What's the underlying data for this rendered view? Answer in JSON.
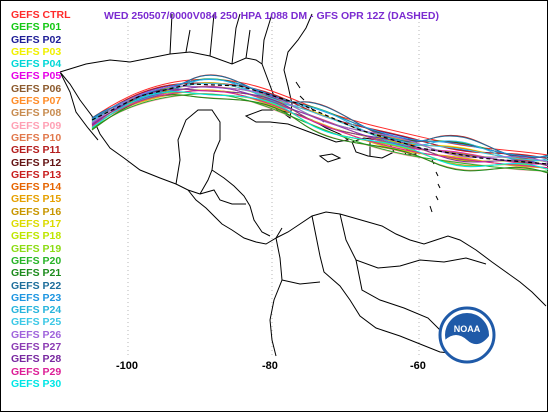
{
  "title": "WED 250507/0000V084  250 HPA 1088 DM - GFS OPR 12Z (DASHED)",
  "legend": [
    {
      "label": "GEFS CTRL",
      "color": "#ff2a2a"
    },
    {
      "label": "GEFS P01",
      "color": "#14c814"
    },
    {
      "label": "GEFS P02",
      "color": "#1e1e96"
    },
    {
      "label": "GEFS P03",
      "color": "#f0f000"
    },
    {
      "label": "GEFS P04",
      "color": "#00d7d7"
    },
    {
      "label": "GEFS P05",
      "color": "#e600e6"
    },
    {
      "label": "GEFS P06",
      "color": "#8c5a2d"
    },
    {
      "label": "GEFS P07",
      "color": "#ff8c28"
    },
    {
      "label": "GEFS P08",
      "color": "#c88c50"
    },
    {
      "label": "GEFS P09",
      "color": "#ffa0b4"
    },
    {
      "label": "GEFS P10",
      "color": "#e1784b"
    },
    {
      "label": "GEFS P11",
      "color": "#b41e1e"
    },
    {
      "label": "GEFS P12",
      "color": "#641414"
    },
    {
      "label": "GEFS P13",
      "color": "#c81e1e"
    },
    {
      "label": "GEFS P14",
      "color": "#e66400"
    },
    {
      "label": "GEFS P15",
      "color": "#e6a000"
    },
    {
      "label": "GEFS P16",
      "color": "#c89600"
    },
    {
      "label": "GEFS P17",
      "color": "#dcdc00"
    },
    {
      "label": "GEFS P18",
      "color": "#bee600"
    },
    {
      "label": "GEFS P19",
      "color": "#8cdc14"
    },
    {
      "label": "GEFS P20",
      "color": "#28b428"
    },
    {
      "label": "GEFS P21",
      "color": "#1e8c1e"
    },
    {
      "label": "GEFS P22",
      "color": "#1e6e9b"
    },
    {
      "label": "GEFS P23",
      "color": "#1e96e1"
    },
    {
      "label": "GEFS P24",
      "color": "#28b4dc"
    },
    {
      "label": "GEFS P25",
      "color": "#3cc8e6"
    },
    {
      "label": "GEFS P26",
      "color": "#a064dc"
    },
    {
      "label": "GEFS P27",
      "color": "#8c3cb4"
    },
    {
      "label": "GEFS P28",
      "color": "#7828a0"
    },
    {
      "label": "GEFS P29",
      "color": "#dc1e96"
    },
    {
      "label": "GEFS P30",
      "color": "#00e6e6"
    }
  ],
  "lon_labels": [
    {
      "text": "-100",
      "lon": -100
    },
    {
      "text": "-80",
      "lon": -80
    },
    {
      "text": "-60",
      "lon": -60
    }
  ],
  "logo": {
    "text": "NOAA",
    "color": "#1f5aa8"
  }
}
